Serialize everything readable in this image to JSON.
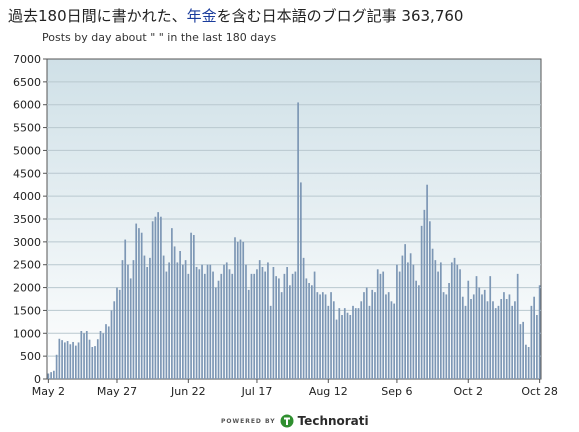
{
  "header": {
    "title_prefix": "過去180日間に書かれた、",
    "title_highlight": "年金",
    "title_suffix": "を含む日本語のブログ記事 363,760",
    "subtitle": "Posts by day about \"  \" in the last 180 days"
  },
  "footer": {
    "powered_by": "POWERED BY",
    "brand": "Technorati"
  },
  "colors": {
    "bar": "#7d97b5",
    "plot_top": "#cfe0e7",
    "plot_bottom": "#ffffff",
    "grid": "#b9c8cf",
    "accent": "#1a3c9c",
    "brand_green": "#2f8f2f"
  },
  "chart_data": {
    "type": "bar",
    "xlabel": "",
    "ylabel": "",
    "ylim": [
      0,
      7000
    ],
    "yticks": [
      0,
      500,
      1000,
      1500,
      2000,
      2500,
      3000,
      3500,
      4000,
      4500,
      5000,
      5500,
      6000,
      6500,
      7000
    ],
    "xtick_labels": [
      {
        "label": "May 2",
        "day": 0
      },
      {
        "label": "May 27",
        "day": 25
      },
      {
        "label": "Jun 22",
        "day": 51
      },
      {
        "label": "Jul 17",
        "day": 76
      },
      {
        "label": "Aug 12",
        "day": 102
      },
      {
        "label": "Sep 6",
        "day": 127
      },
      {
        "label": "Oct 2",
        "day": 153
      },
      {
        "label": "Oct 28",
        "day": 179
      }
    ],
    "grid": true,
    "values": [
      120,
      150,
      180,
      530,
      880,
      850,
      800,
      830,
      760,
      810,
      730,
      800,
      1050,
      1000,
      1050,
      860,
      700,
      720,
      870,
      1050,
      1000,
      1200,
      1150,
      1500,
      1700,
      2000,
      1950,
      2600,
      3050,
      2500,
      2200,
      2600,
      3400,
      3300,
      3200,
      2700,
      2450,
      2650,
      3450,
      3550,
      3650,
      3550,
      2700,
      2350,
      2550,
      3300,
      2900,
      2550,
      2800,
      2500,
      2600,
      2300,
      3200,
      3150,
      2450,
      2400,
      2500,
      2300,
      2500,
      2500,
      2350,
      2000,
      2150,
      2300,
      2500,
      2550,
      2400,
      2300,
      3100,
      3000,
      3050,
      3000,
      2500,
      1950,
      2300,
      2300,
      2400,
      2600,
      2450,
      2350,
      2550,
      1600,
      2450,
      2250,
      2200,
      1900,
      2300,
      2450,
      2050,
      2300,
      2350,
      6050,
      4300,
      2650,
      2200,
      2100,
      2050,
      2350,
      1900,
      1850,
      1900,
      1850,
      1600,
      1900,
      1700,
      1300,
      1550,
      1400,
      1550,
      1450,
      1400,
      1600,
      1550,
      1550,
      1700,
      1900,
      2000,
      1600,
      1950,
      1900,
      2400,
      2300,
      2350,
      1850,
      1900,
      1700,
      1650,
      2500,
      2350,
      2700,
      2950,
      2550,
      2750,
      2500,
      2150,
      2050,
      3350,
      3700,
      4250,
      3450,
      2850,
      2600,
      2350,
      2550,
      1900,
      1850,
      2100,
      2550,
      2650,
      2500,
      2400,
      1800,
      1600,
      2150,
      1750,
      1850,
      2250,
      2000,
      1850,
      1950,
      1700,
      2250,
      1700,
      1550,
      1600,
      1750,
      1900,
      1750,
      1850,
      1600,
      1700,
      2300,
      1200,
      1250,
      750,
      700,
      1600,
      1800,
      1400,
      2050
    ]
  }
}
